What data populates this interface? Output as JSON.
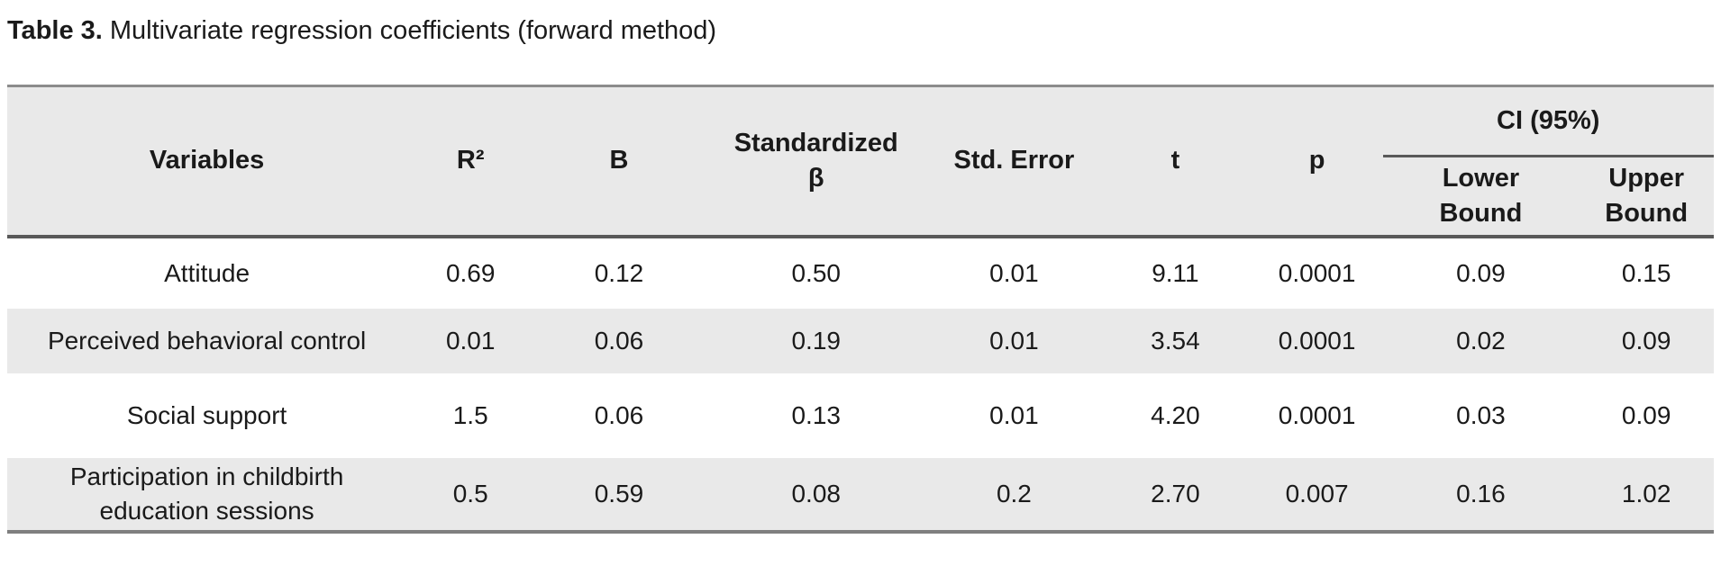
{
  "title": {
    "prefix": "Table 3.",
    "text": " Multivariate regression coefficients (forward method)"
  },
  "table": {
    "headers": {
      "variables": "Variables",
      "r2": "R²",
      "b": "B",
      "beta": "Standardized\nβ",
      "std_error": "Std. Error",
      "t": "t",
      "p": "p",
      "ci_group": "CI (95%)",
      "ci_lower": "Lower\nBound",
      "ci_upper": "Upper\nBound"
    },
    "rows": [
      {
        "variable": "Attitude",
        "r2": "0.69",
        "b": "0.12",
        "beta": "0.50",
        "std_error": "0.01",
        "t": "9.11",
        "p": "0.0001",
        "lower": "0.09",
        "upper": "0.15"
      },
      {
        "variable": "Perceived behavioral control",
        "r2": "0.01",
        "b": "0.06",
        "beta": "0.19",
        "std_error": "0.01",
        "t": "3.54",
        "p": "0.0001",
        "lower": "0.02",
        "upper": "0.09"
      },
      {
        "variable": "Social support",
        "r2": "1.5",
        "b": "0.06",
        "beta": "0.13",
        "std_error": "0.01",
        "t": "4.20",
        "p": "0.0001",
        "lower": "0.03",
        "upper": "0.09"
      },
      {
        "variable": "Participation in childbirth\neducation sessions",
        "r2": "0.5",
        "b": "0.59",
        "beta": "0.08",
        "std_error": "0.2",
        "t": "2.70",
        "p": "0.007",
        "lower": "0.16",
        "upper": "1.02"
      }
    ]
  },
  "colors": {
    "header_background": "#e9e9e9",
    "stripe_background": "#e9e9e9",
    "row_background": "#ffffff",
    "rule_dark": "#595959",
    "rule_top": "#8c8c8c",
    "rule_bottom": "#7f7f7f",
    "text": "#1a1a1a"
  }
}
